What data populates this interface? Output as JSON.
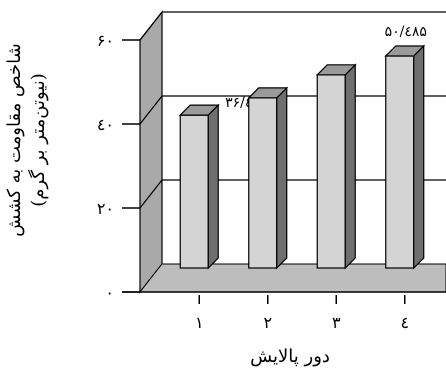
{
  "chart_data": {
    "type": "bar",
    "categories": [
      "۱",
      "۲",
      "۳",
      "٤"
    ],
    "values": [
      36.403,
      40.5,
      46.0,
      50.485
    ],
    "data_labels": [
      "۳۶/٤۰۳",
      "",
      "",
      "۵۰/٤۸۵"
    ],
    "ylim": [
      0,
      60
    ],
    "yticks": [
      "۰",
      "۲۰",
      "٤۰",
      "۶۰"
    ],
    "xlabel": "دور پالایش",
    "ylabel_line1": "شاخص مقاومت به کشش",
    "ylabel_line2": "(نیوتن‌متر بر گرم)",
    "grid": true,
    "three_d": true,
    "colors": {
      "bar_front": "#d4d4d4",
      "bar_side": "#6f6f6f",
      "bar_top": "#9a9a9a",
      "back_wall": "#a9a9a9",
      "floor": "#bdbdbd"
    }
  }
}
